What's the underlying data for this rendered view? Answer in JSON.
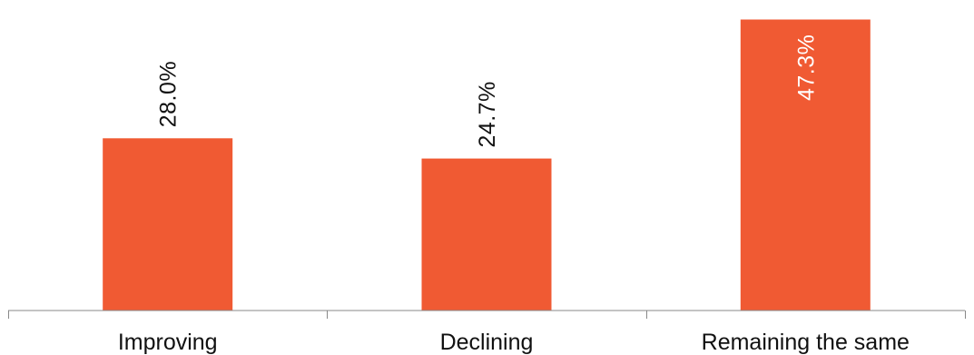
{
  "chart_data": {
    "type": "bar",
    "title": "",
    "xlabel": "",
    "ylabel": "",
    "categories": [
      "Improving",
      "Declining",
      "Remaining the same"
    ],
    "values": [
      28.0,
      24.7,
      47.3
    ],
    "value_labels": [
      "28.0%",
      "24.7%",
      "47.3%"
    ],
    "ylim": [
      0,
      49
    ],
    "grid": false,
    "legend": "none",
    "bar_color": "#F05A33",
    "label_color_outside": "#111111",
    "label_color_inside": "#ffffff",
    "axis_color": "#888888"
  }
}
